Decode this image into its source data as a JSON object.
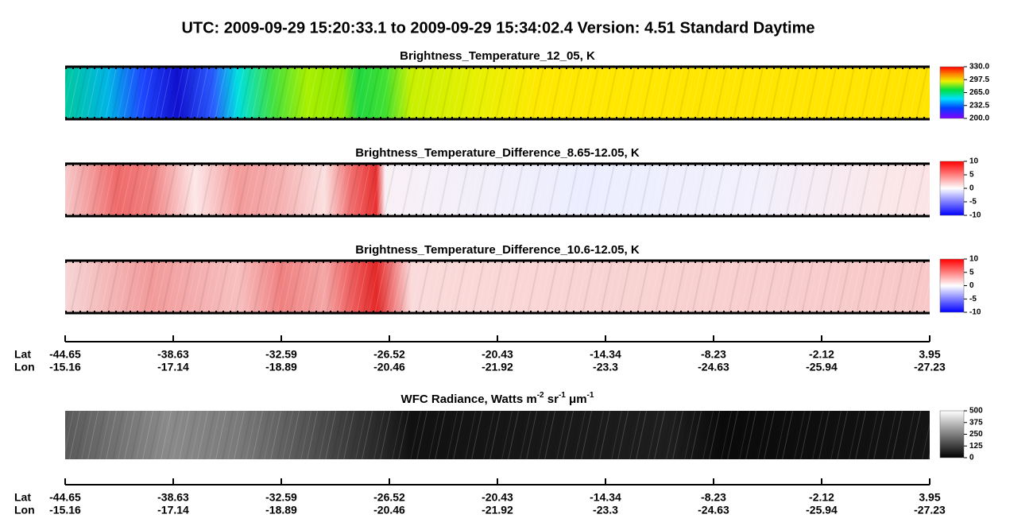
{
  "title": "UTC:  2009-09-29   15:20:33.1  to  2009-09-29   15:34:02.4    Version: 4.51  Standard Daytime",
  "chart_data": [
    {
      "type": "image-strip",
      "title": "Brightness_Temperature_12_05, K",
      "colormap": "rainbow",
      "clim": [
        200,
        330
      ],
      "cticks": [
        {
          "value": 330,
          "label": "330.0"
        },
        {
          "value": 297.5,
          "label": "297.5"
        },
        {
          "value": 265,
          "label": "265.0"
        },
        {
          "value": 232.5,
          "label": "232.5"
        },
        {
          "value": 200,
          "label": "200.0"
        }
      ]
    },
    {
      "type": "image-strip",
      "title": "Brightness_Temperature_Difference_8.65-12.05, K",
      "colormap": "bwr",
      "clim": [
        -10,
        10
      ],
      "cticks": [
        10,
        5,
        0,
        -5,
        -10
      ]
    },
    {
      "type": "image-strip",
      "title": "Brightness_Temperature_Difference_10.6-12.05, K",
      "colormap": "bwr",
      "clim": [
        -10,
        10
      ],
      "cticks": [
        10,
        5,
        0,
        -5,
        -10
      ]
    },
    {
      "type": "image-strip",
      "title_parts": [
        "WFC Radiance, Watts m",
        "-2",
        " sr",
        "-1",
        " μm",
        "-1"
      ],
      "colormap": "gray",
      "clim": [
        0,
        500
      ],
      "cticks": [
        500,
        375,
        250,
        125,
        0
      ]
    }
  ],
  "axes": [
    {
      "lat_label": "Lat",
      "lon_label": "Lon",
      "lat": [
        -44.65,
        -38.63,
        -32.59,
        -26.52,
        -20.43,
        -14.34,
        -8.23,
        -2.12,
        3.95
      ],
      "lon": [
        -15.16,
        -17.14,
        -18.89,
        -20.46,
        -21.92,
        -23.3,
        -24.63,
        -25.94,
        -27.23
      ]
    },
    {
      "lat_label": "Lat",
      "lon_label": "Lon",
      "lat": [
        -44.65,
        -38.63,
        -32.59,
        -26.52,
        -20.43,
        -14.34,
        -8.23,
        -2.12,
        3.95
      ],
      "lon": [
        -15.16,
        -17.14,
        -18.89,
        -20.46,
        -21.92,
        -23.3,
        -24.63,
        -25.94,
        -27.23
      ]
    }
  ]
}
